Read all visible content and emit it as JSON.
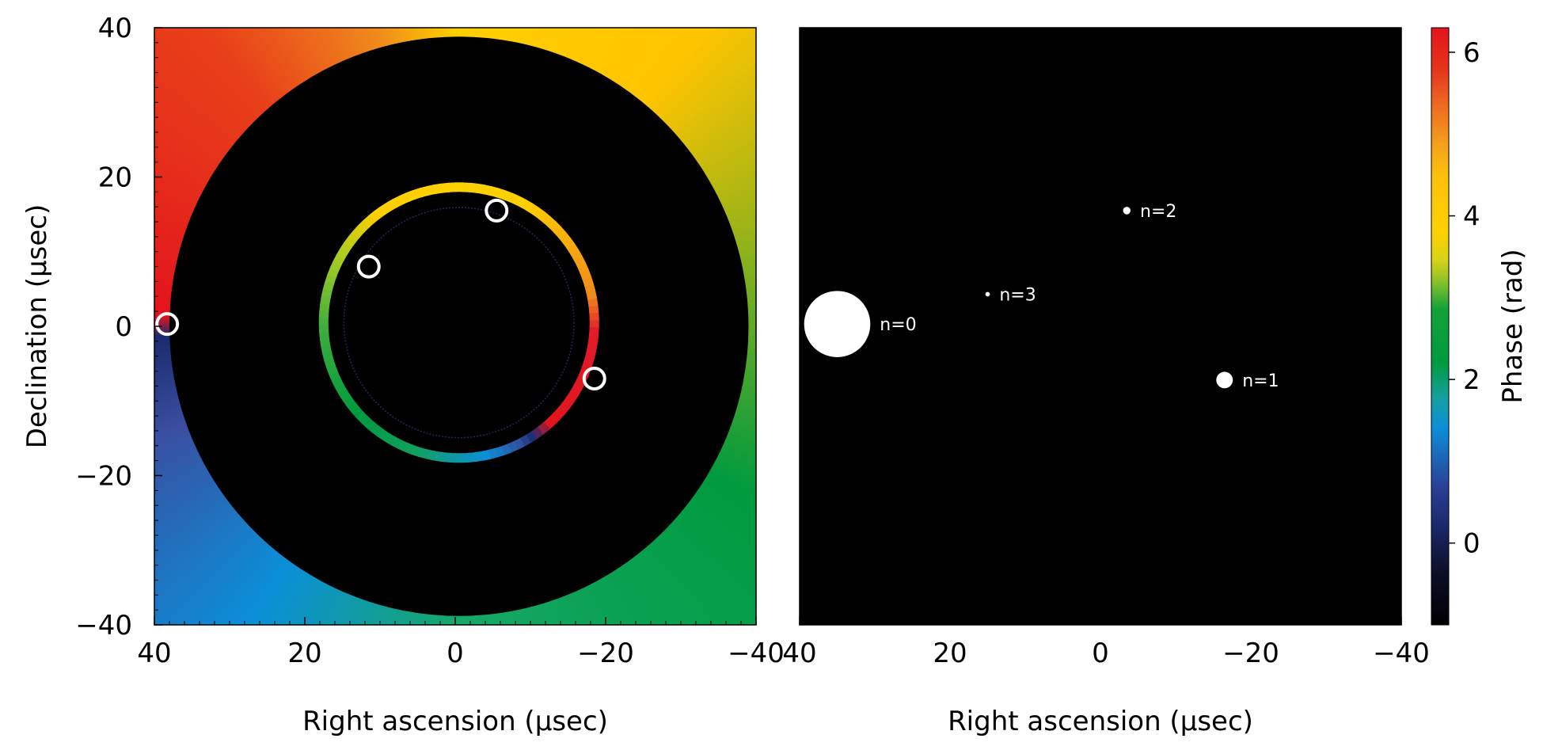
{
  "chart_data": [
    {
      "type": "heatmap",
      "panel": "left",
      "title": "",
      "xlabel": "Right ascension (μsec)",
      "ylabel": "Declination (μsec)",
      "xlim": [
        40,
        -40
      ],
      "ylim": [
        -40,
        40
      ],
      "xticks": [
        40,
        20,
        0,
        -20,
        -40
      ],
      "yticks": [
        40,
        20,
        0,
        -20,
        -40
      ],
      "xtick_labels": [
        "40",
        "20",
        "0",
        "−20",
        "−40"
      ],
      "ytick_labels": [
        "40",
        "20",
        "0",
        "−20",
        "−40"
      ],
      "background_phase": "azimuthal phase wrap around the centre, 0 to 2π",
      "dark_disk": {
        "center": [
          -0.5,
          0
        ],
        "radius": 38.5
      },
      "ring": {
        "center": [
          -0.5,
          0.5
        ],
        "radius": 18,
        "phase_colored": true
      },
      "inner_ring": {
        "center": [
          -0.5,
          0.5
        ],
        "radius": 15.3
      },
      "markers": [
        {
          "x": 38.3,
          "y": 0.3
        },
        {
          "x": 11.5,
          "y": 8
        },
        {
          "x": -5.5,
          "y": 15.5
        },
        {
          "x": -18.5,
          "y": -7
        }
      ]
    },
    {
      "type": "scatter",
      "panel": "right",
      "title": "",
      "xlabel": "Right ascension (μsec)",
      "ylabel": "",
      "xlim": [
        40,
        -40
      ],
      "ylim": [
        -40,
        40
      ],
      "xticks": [
        40,
        20,
        0,
        -20,
        -40
      ],
      "xtick_labels": [
        "40",
        "20",
        "0",
        "−20",
        "−40"
      ],
      "points": [
        {
          "label": "n=0",
          "x": 35,
          "y": 0.3,
          "size": 4.4
        },
        {
          "label": "n=1",
          "x": -16.5,
          "y": -7.2,
          "size": 1.1
        },
        {
          "label": "n=2",
          "x": -3.5,
          "y": 15.5,
          "size": 0.5
        },
        {
          "label": "n=3",
          "x": 15,
          "y": 4.3,
          "size": 0.3
        }
      ]
    }
  ],
  "colorbar": {
    "label": "Phase (rad)",
    "min": -1,
    "max": 6.3,
    "ticks": [
      0,
      2,
      4,
      6
    ],
    "tick_labels": [
      "0",
      "2",
      "4",
      "6"
    ],
    "colors": {
      "black": "#000000",
      "navy": "#1c2a6e",
      "blue": "#0b8fd8",
      "green": "#009a3e",
      "yellow": "#ffd000",
      "orange": "#f08a1c",
      "red": "#e2141c"
    }
  }
}
